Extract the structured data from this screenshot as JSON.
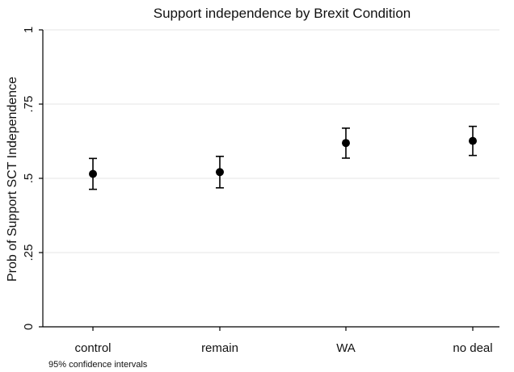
{
  "chart_data": {
    "type": "scatter",
    "title": "Support independence by Brexit Condition",
    "xlabel": "",
    "ylabel": "Prob of Support SCT Independence",
    "categories": [
      "control",
      "remain",
      "WA",
      "no deal"
    ],
    "series": [
      {
        "values": [
          0.515,
          0.521,
          0.619,
          0.626
        ],
        "ci_low": [
          0.463,
          0.468,
          0.568,
          0.577
        ],
        "ci_high": [
          0.567,
          0.574,
          0.669,
          0.675
        ]
      }
    ],
    "ylim": [
      0,
      1
    ],
    "yticks": [
      0,
      0.25,
      0.5,
      0.75,
      1
    ],
    "ytick_labels": [
      "0",
      ".25",
      ".5",
      ".75",
      "1"
    ],
    "grid": true,
    "note": "95% confidence intervals",
    "colors": {
      "marker": "#000000",
      "axis": "#000000",
      "grid": "#e6e6e6",
      "background": "#ffffff"
    }
  }
}
